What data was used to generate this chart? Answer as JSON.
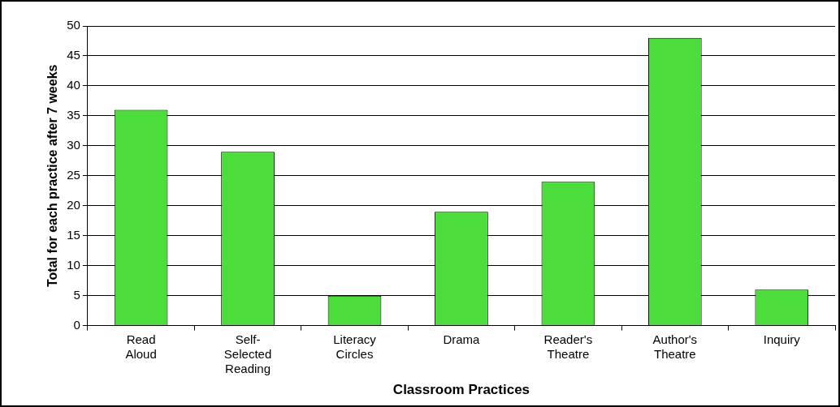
{
  "chart_data": {
    "type": "bar",
    "xlabel": "Classroom Practices",
    "ylabel": "Total for each practice after 7 weeks",
    "categories": [
      "Read Aloud",
      "Self-Selected Reading",
      "Literacy Circles",
      "Drama",
      "Reader's Theatre",
      "Author's Theatre",
      "Inquiry"
    ],
    "values": [
      36,
      29,
      5,
      19,
      24,
      48,
      6
    ],
    "color": "#4cdc3c",
    "ylim": [
      0,
      50
    ],
    "yticks": [
      0,
      5,
      10,
      15,
      20,
      25,
      30,
      35,
      40,
      45,
      50
    ],
    "grid": "y",
    "legend": false
  }
}
